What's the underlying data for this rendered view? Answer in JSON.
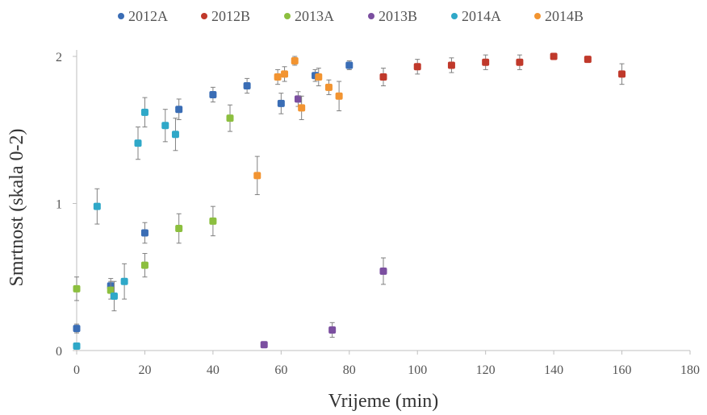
{
  "chart_data": {
    "type": "scatter",
    "xlabel": "Vrijeme (min)",
    "ylabel": "Smrtnost (skala 0-2)",
    "xlim": [
      0,
      180
    ],
    "ylim": [
      0,
      2
    ],
    "x_ticks": [
      "0",
      "20",
      "40",
      "60",
      "80",
      "100",
      "120",
      "140",
      "160",
      "180"
    ],
    "y_ticks": [
      "0",
      "1",
      "2"
    ],
    "grid": false,
    "legend_position": "top",
    "error_bars": true,
    "series": [
      {
        "name": "2012A",
        "color": "#3a6db5",
        "points": [
          [
            0,
            0.15,
            0.03
          ],
          [
            10,
            0.44,
            0.05
          ],
          [
            20,
            0.8,
            0.07
          ],
          [
            30,
            1.64,
            0.07
          ],
          [
            40,
            1.74,
            0.05
          ],
          [
            50,
            1.8,
            0.05
          ],
          [
            60,
            1.68,
            0.07
          ],
          [
            70,
            1.87,
            0.04
          ],
          [
            80,
            1.94,
            0.03
          ]
        ]
      },
      {
        "name": "2012B",
        "color": "#c0392b",
        "points": [
          [
            90,
            1.86,
            0.06
          ],
          [
            100,
            1.93,
            0.05
          ],
          [
            110,
            1.94,
            0.05
          ],
          [
            120,
            1.96,
            0.05
          ],
          [
            130,
            1.96,
            0.05
          ],
          [
            140,
            2.0,
            0.02
          ],
          [
            150,
            1.98,
            0.02
          ],
          [
            160,
            1.88,
            0.07
          ]
        ]
      },
      {
        "name": "2013A",
        "color": "#8cbf3f",
        "points": [
          [
            0,
            0.42,
            0.08
          ],
          [
            10,
            0.41,
            0.06
          ],
          [
            20,
            0.58,
            0.08
          ],
          [
            30,
            0.83,
            0.1
          ],
          [
            40,
            0.88,
            0.1
          ],
          [
            45,
            1.58,
            0.09
          ]
        ]
      },
      {
        "name": "2013B",
        "color": "#7b4fa0",
        "points": [
          [
            55,
            0.04,
            0.01
          ],
          [
            65,
            1.71,
            0.05
          ],
          [
            75,
            0.14,
            0.05
          ],
          [
            90,
            0.54,
            0.09
          ]
        ]
      },
      {
        "name": "2014A",
        "color": "#2fa8c8",
        "points": [
          [
            0,
            0.03,
            0.01
          ],
          [
            6,
            0.98,
            0.12
          ],
          [
            11,
            0.37,
            0.1
          ],
          [
            14,
            0.47,
            0.12
          ],
          [
            18,
            1.41,
            0.11
          ],
          [
            20,
            1.62,
            0.1
          ],
          [
            26,
            1.53,
            0.11
          ],
          [
            29,
            1.47,
            0.11
          ]
        ]
      },
      {
        "name": "2014B",
        "color": "#f29431",
        "points": [
          [
            53,
            1.19,
            0.13
          ],
          [
            59,
            1.86,
            0.05
          ],
          [
            61,
            1.88,
            0.05
          ],
          [
            64,
            1.97,
            0.03
          ],
          [
            66,
            1.65,
            0.08
          ],
          [
            71,
            1.86,
            0.06
          ],
          [
            74,
            1.79,
            0.05
          ],
          [
            77,
            1.73,
            0.1
          ]
        ]
      }
    ]
  }
}
